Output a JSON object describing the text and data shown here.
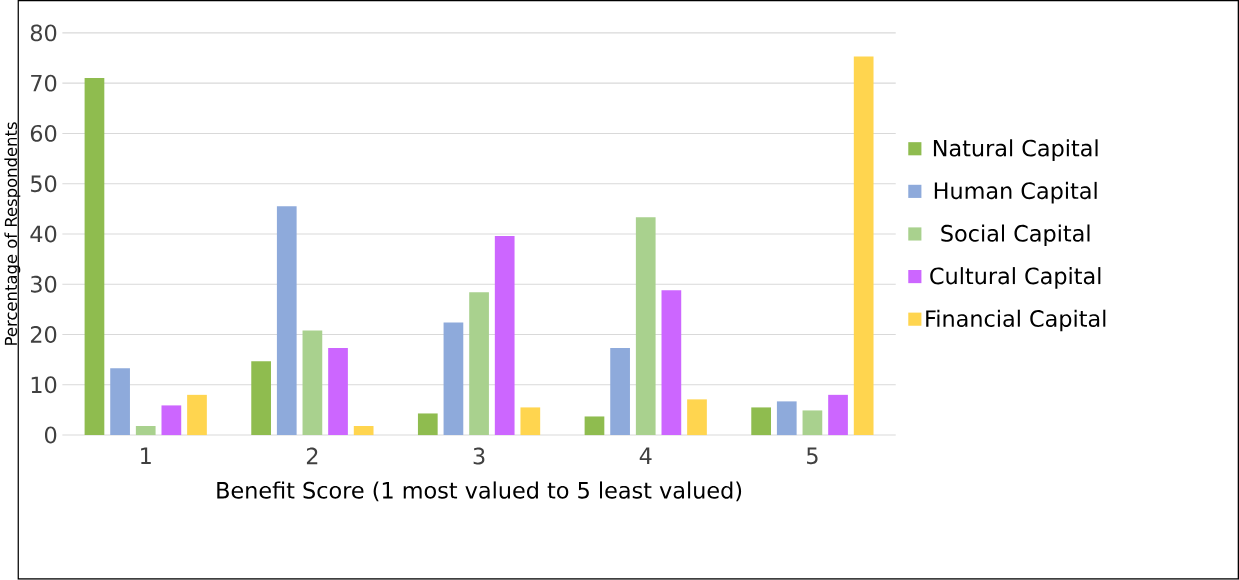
{
  "chart_data": {
    "type": "bar",
    "xlabel": "Benefit Score (1 most valued to 5 least valued)",
    "ylabel": "Percentage of Respondents",
    "categories": [
      "1",
      "2",
      "3",
      "4",
      "5"
    ],
    "series": [
      {
        "name": "Natural Capital",
        "color": "#8fbc4f",
        "values": [
          71.0,
          14.7,
          4.3,
          3.7,
          5.5
        ]
      },
      {
        "name": "Human Capital",
        "color": "#8eaadb",
        "values": [
          13.3,
          45.5,
          22.4,
          17.3,
          6.7
        ]
      },
      {
        "name": "Social Capital",
        "color": "#a9d18e",
        "values": [
          1.8,
          20.8,
          28.4,
          43.3,
          4.9
        ]
      },
      {
        "name": "Cultural Capital",
        "color": "#cc66ff",
        "values": [
          5.9,
          17.3,
          39.6,
          28.8,
          8.0
        ]
      },
      {
        "name": "Financial Capital",
        "color": "#ffd54f",
        "values": [
          8.0,
          1.8,
          5.5,
          7.1,
          75.3
        ]
      }
    ],
    "ylim": [
      0,
      80
    ],
    "yticks": [
      0,
      10,
      20,
      30,
      40,
      50,
      60,
      70,
      80
    ],
    "grid": "y",
    "legend": "right"
  }
}
